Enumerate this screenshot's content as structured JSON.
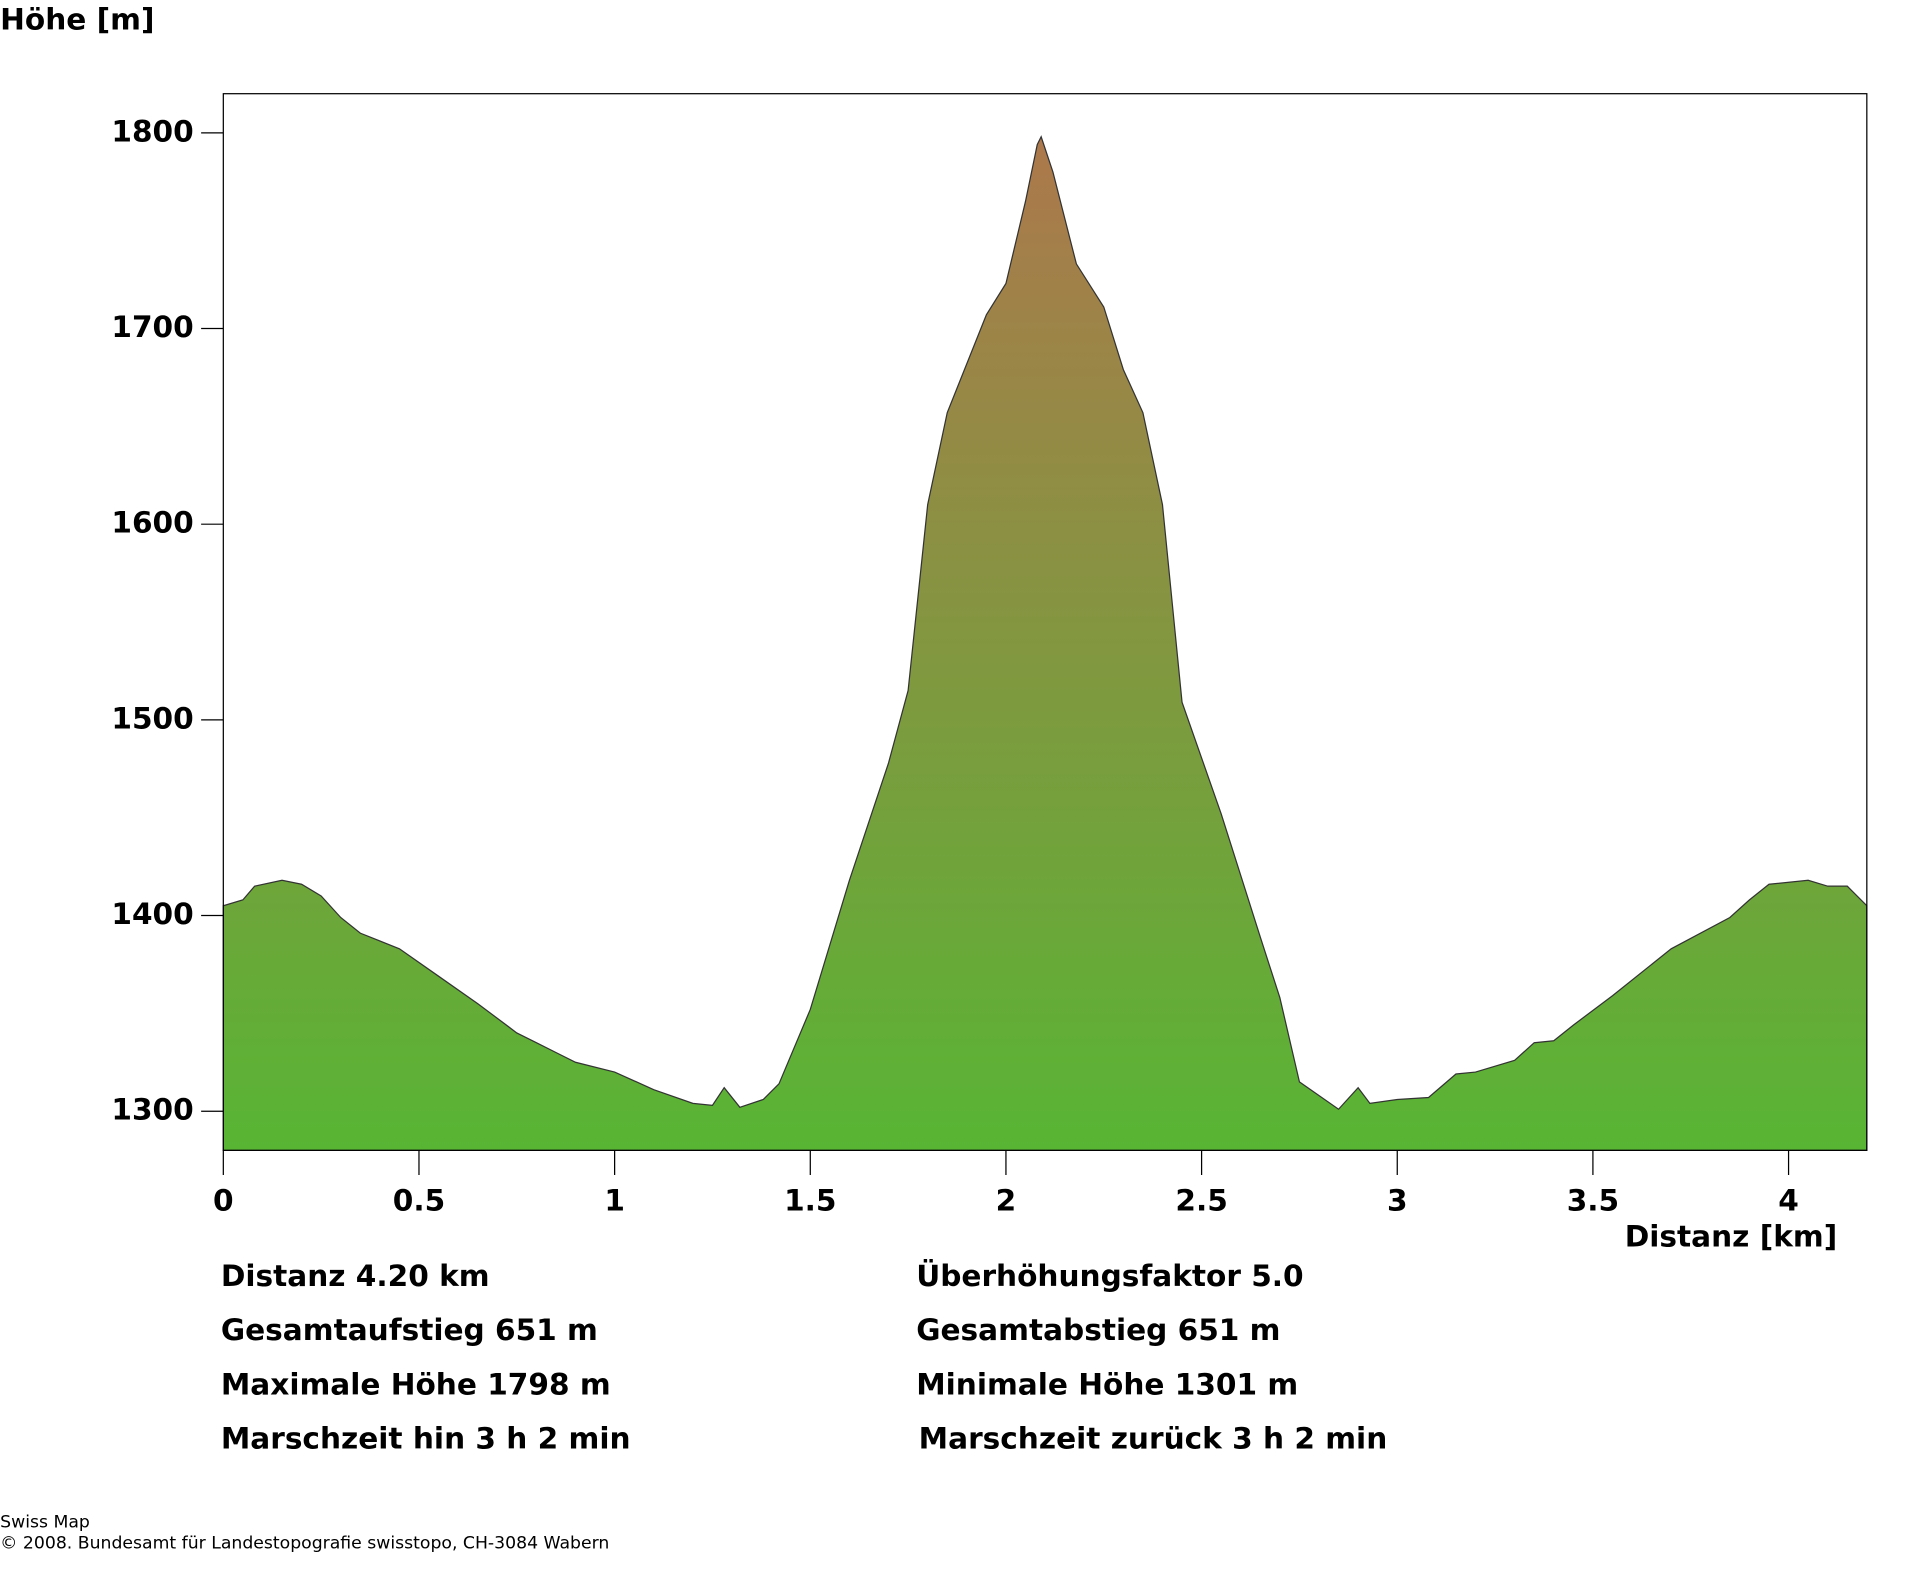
{
  "chart_data": {
    "type": "area",
    "y_label": "Höhe [m]",
    "x_label": "Distanz [km]",
    "x": [
      0,
      0.05,
      0.08,
      0.15,
      0.2,
      0.25,
      0.3,
      0.35,
      0.45,
      0.55,
      0.65,
      0.75,
      0.8,
      0.85,
      0.9,
      1.0,
      1.1,
      1.2,
      1.25,
      1.28,
      1.32,
      1.38,
      1.42,
      1.5,
      1.6,
      1.7,
      1.75,
      1.8,
      1.85,
      1.95,
      2.0,
      2.05,
      2.08,
      2.09,
      2.12,
      2.18,
      2.25,
      2.3,
      2.35,
      2.4,
      2.45,
      2.55,
      2.65,
      2.7,
      2.75,
      2.85,
      2.9,
      2.93,
      3.0,
      3.08,
      3.15,
      3.2,
      3.3,
      3.35,
      3.4,
      3.45,
      3.55,
      3.7,
      3.85,
      3.9,
      3.95,
      4.05,
      4.1,
      4.15,
      4.2
    ],
    "values": [
      1405,
      1408,
      1415,
      1418,
      1416,
      1410,
      1399,
      1391,
      1383,
      1369,
      1355,
      1340,
      1335,
      1330,
      1325,
      1320,
      1311,
      1304,
      1303,
      1312,
      1302,
      1306,
      1314,
      1352,
      1418,
      1478,
      1515,
      1610,
      1657,
      1707,
      1723,
      1765,
      1794,
      1798,
      1780,
      1733,
      1711,
      1679,
      1657,
      1610,
      1509,
      1452,
      1389,
      1358,
      1315,
      1301,
      1312,
      1304,
      1306,
      1307,
      1319,
      1320,
      1326,
      1335,
      1336,
      1344,
      1359,
      1383,
      1399,
      1408,
      1416,
      1418,
      1415,
      1415,
      1405
    ],
    "fill_colors": [
      "#58b534",
      "#ad784c"
    ],
    "xlim": [
      0,
      4.2
    ],
    "xticks": [
      0,
      0.5,
      1,
      1.5,
      2,
      2.5,
      3,
      3.5,
      4
    ],
    "ylim": [
      1280,
      1820
    ],
    "yticks": [
      1300,
      1400,
      1500,
      1600,
      1700,
      1800
    ]
  },
  "stats": {
    "left": [
      "Distanz 4.20 km",
      "Gesamtaufstieg  651 m",
      "Maximale Höhe  1798 m",
      "Marschzeit hin  3 h 2 min"
    ],
    "right": [
      "Überhöhungsfaktor 5.0",
      "Gesamtabstieg  651 m",
      "Minimale Höhe  1301 m",
      "Marschzeit zurück  3 h 2 min"
    ]
  },
  "footer": {
    "line1": "Swiss Map",
    "line2": "© 2008. Bundesamt für Landestopografie swisstopo, CH-3084 Wabern"
  }
}
